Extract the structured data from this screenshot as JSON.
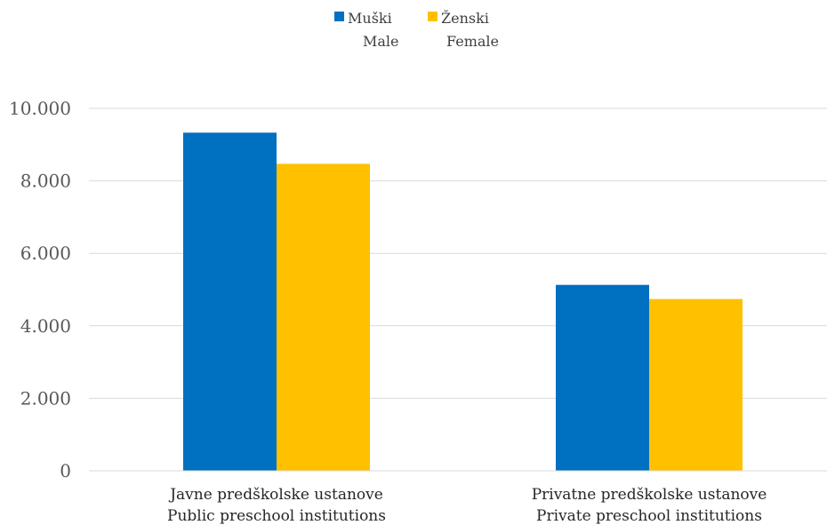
{
  "chart_data": {
    "type": "bar",
    "categories": [
      {
        "line1": "Javne predškolske ustanove",
        "line2": "Public preschool institutions"
      },
      {
        "line1": "Privatne predškolske ustanove",
        "line2": "Private preschool institutions"
      }
    ],
    "series": [
      {
        "label_line1": "Muški",
        "label_line2": "Male",
        "color": "#0070C0",
        "values": [
          9330,
          5130
        ]
      },
      {
        "label_line1": "Ženski",
        "label_line2": "Female",
        "color": "#FFC000",
        "values": [
          8470,
          4740
        ]
      }
    ],
    "yticks": [
      "0",
      "2.000",
      "4.000",
      "6.000",
      "8.000",
      "10.000"
    ],
    "ylim": [
      0,
      10000
    ],
    "grid": true,
    "legend_position": "top-center"
  }
}
